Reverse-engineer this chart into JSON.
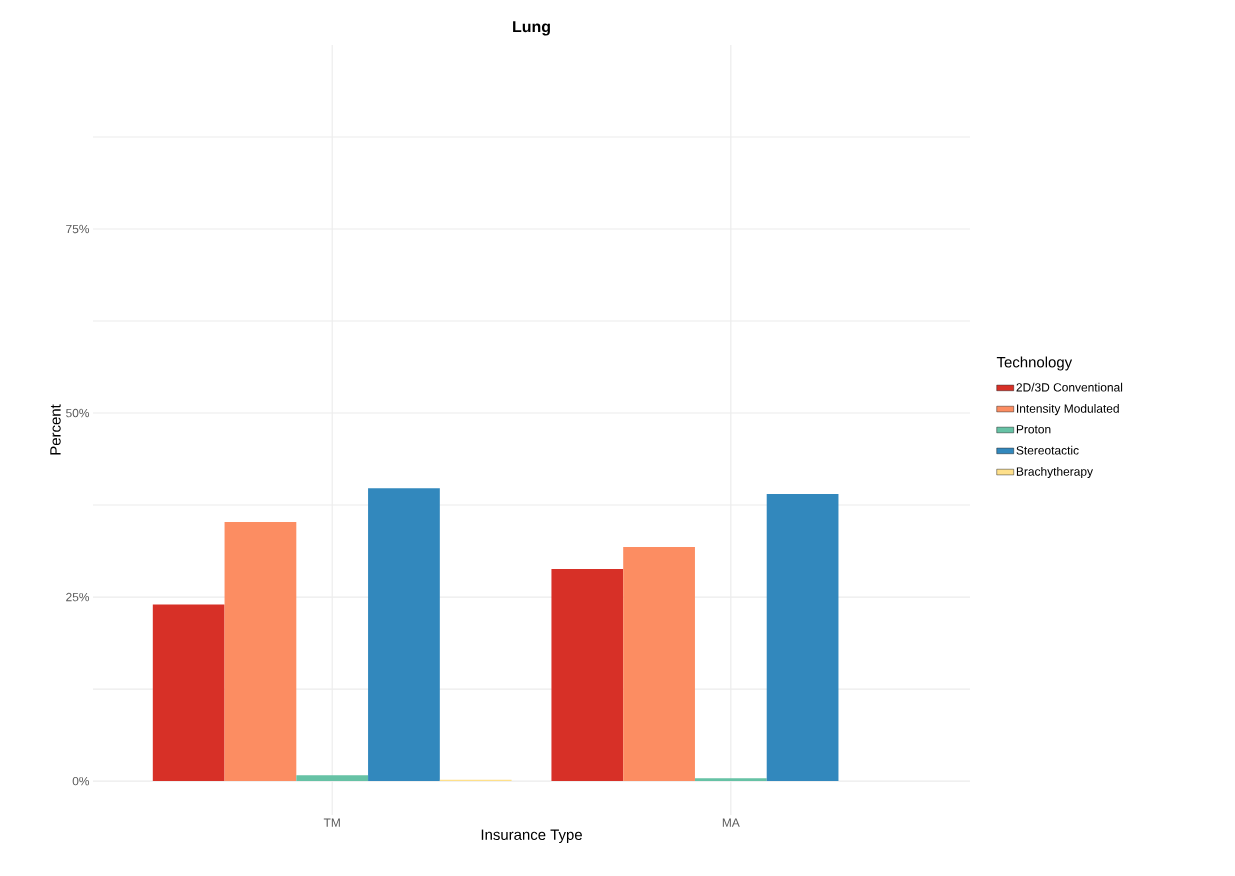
{
  "chart_data": {
    "type": "bar",
    "title": "Lung",
    "xlabel": "Insurance Type",
    "ylabel": "Percent",
    "legend_title": "Technology",
    "categories": [
      "TM",
      "MA"
    ],
    "series": [
      {
        "name": "2D/3D Conventional",
        "color": "#d73027",
        "values": [
          24.0,
          28.8
        ]
      },
      {
        "name": "Intensity Modulated",
        "color": "#fc8d62",
        "values": [
          35.2,
          31.8
        ]
      },
      {
        "name": "Proton",
        "color": "#66c2a5",
        "values": [
          0.8,
          0.4
        ]
      },
      {
        "name": "Stereotactic",
        "color": "#3288bd",
        "values": [
          39.8,
          39.0
        ]
      },
      {
        "name": "Brachytherapy",
        "color": "#fee08b",
        "values": [
          0.2,
          null
        ]
      }
    ],
    "ylim": [
      -4.6,
      100
    ],
    "yticks": [
      {
        "value": 0,
        "label": "0%"
      },
      {
        "value": 12.5,
        "label": null
      },
      {
        "value": 25,
        "label": "25%"
      },
      {
        "value": 37.5,
        "label": null
      },
      {
        "value": 50,
        "label": "50%"
      },
      {
        "value": 62.5,
        "label": null
      },
      {
        "value": 75,
        "label": "75%"
      },
      {
        "value": 87.5,
        "label": null
      }
    ],
    "grid": true,
    "legend": "right"
  }
}
